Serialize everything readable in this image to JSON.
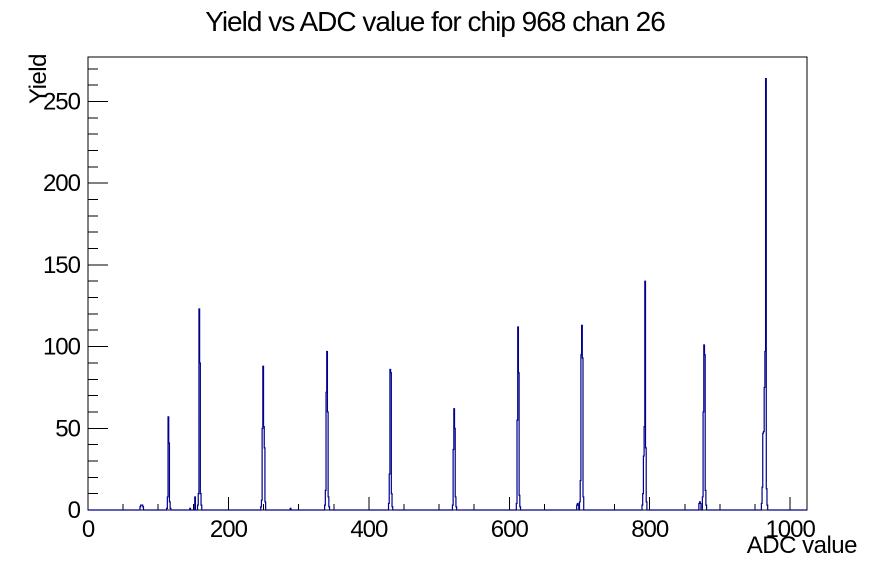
{
  "chart_data": {
    "type": "histogram",
    "title": "Yield vs ADC value for chip 968 chan 26",
    "xlabel": "ADC value",
    "ylabel": "Yield",
    "xlim": [
      0,
      1024
    ],
    "ylim": [
      0,
      277.2
    ],
    "x_ticks": [
      0,
      200,
      400,
      600,
      800,
      1000
    ],
    "x_minor_step": 50,
    "y_ticks": [
      0,
      50,
      100,
      150,
      200,
      250
    ],
    "y_minor_step": 10,
    "grid": false,
    "legend": "none",
    "bin_width": 1,
    "line_color": "#00008b",
    "background_color": "#ffffff",
    "bins": [
      [
        74,
        2
      ],
      [
        75,
        3
      ],
      [
        76,
        3
      ],
      [
        77,
        3
      ],
      [
        78,
        2
      ],
      [
        112,
        1
      ],
      [
        113,
        8
      ],
      [
        114,
        57
      ],
      [
        115,
        41
      ],
      [
        116,
        5
      ],
      [
        117,
        1
      ],
      [
        145,
        1
      ],
      [
        152,
        8
      ],
      [
        156,
        3
      ],
      [
        157,
        10
      ],
      [
        158,
        123
      ],
      [
        159,
        90
      ],
      [
        160,
        10
      ],
      [
        161,
        3
      ],
      [
        246,
        2
      ],
      [
        247,
        6
      ],
      [
        248,
        50
      ],
      [
        249,
        88
      ],
      [
        250,
        51
      ],
      [
        251,
        38
      ],
      [
        252,
        5
      ],
      [
        288,
        1
      ],
      [
        337,
        3
      ],
      [
        338,
        12
      ],
      [
        339,
        72
      ],
      [
        340,
        97
      ],
      [
        341,
        60
      ],
      [
        342,
        8
      ],
      [
        343,
        2
      ],
      [
        428,
        4
      ],
      [
        429,
        22
      ],
      [
        430,
        86
      ],
      [
        431,
        84
      ],
      [
        432,
        10
      ],
      [
        433,
        2
      ],
      [
        519,
        3
      ],
      [
        520,
        37
      ],
      [
        521,
        62
      ],
      [
        522,
        50
      ],
      [
        523,
        8
      ],
      [
        524,
        2
      ],
      [
        610,
        4
      ],
      [
        611,
        55
      ],
      [
        612,
        112
      ],
      [
        613,
        84
      ],
      [
        614,
        9
      ],
      [
        615,
        2
      ],
      [
        696,
        3
      ],
      [
        697,
        4
      ],
      [
        698,
        3
      ],
      [
        700,
        5
      ],
      [
        701,
        18
      ],
      [
        702,
        95
      ],
      [
        703,
        113
      ],
      [
        704,
        93
      ],
      [
        705,
        8
      ],
      [
        789,
        3
      ],
      [
        790,
        10
      ],
      [
        791,
        33
      ],
      [
        792,
        51
      ],
      [
        793,
        140
      ],
      [
        794,
        38
      ],
      [
        795,
        5
      ],
      [
        870,
        4
      ],
      [
        871,
        5
      ],
      [
        872,
        4
      ],
      [
        875,
        8
      ],
      [
        876,
        60
      ],
      [
        877,
        101
      ],
      [
        878,
        95
      ],
      [
        879,
        12
      ],
      [
        880,
        3
      ],
      [
        959,
        4
      ],
      [
        960,
        14
      ],
      [
        961,
        47
      ],
      [
        962,
        48
      ],
      [
        963,
        75
      ],
      [
        964,
        97
      ],
      [
        965,
        264
      ],
      [
        966,
        13
      ],
      [
        967,
        3
      ]
    ]
  }
}
